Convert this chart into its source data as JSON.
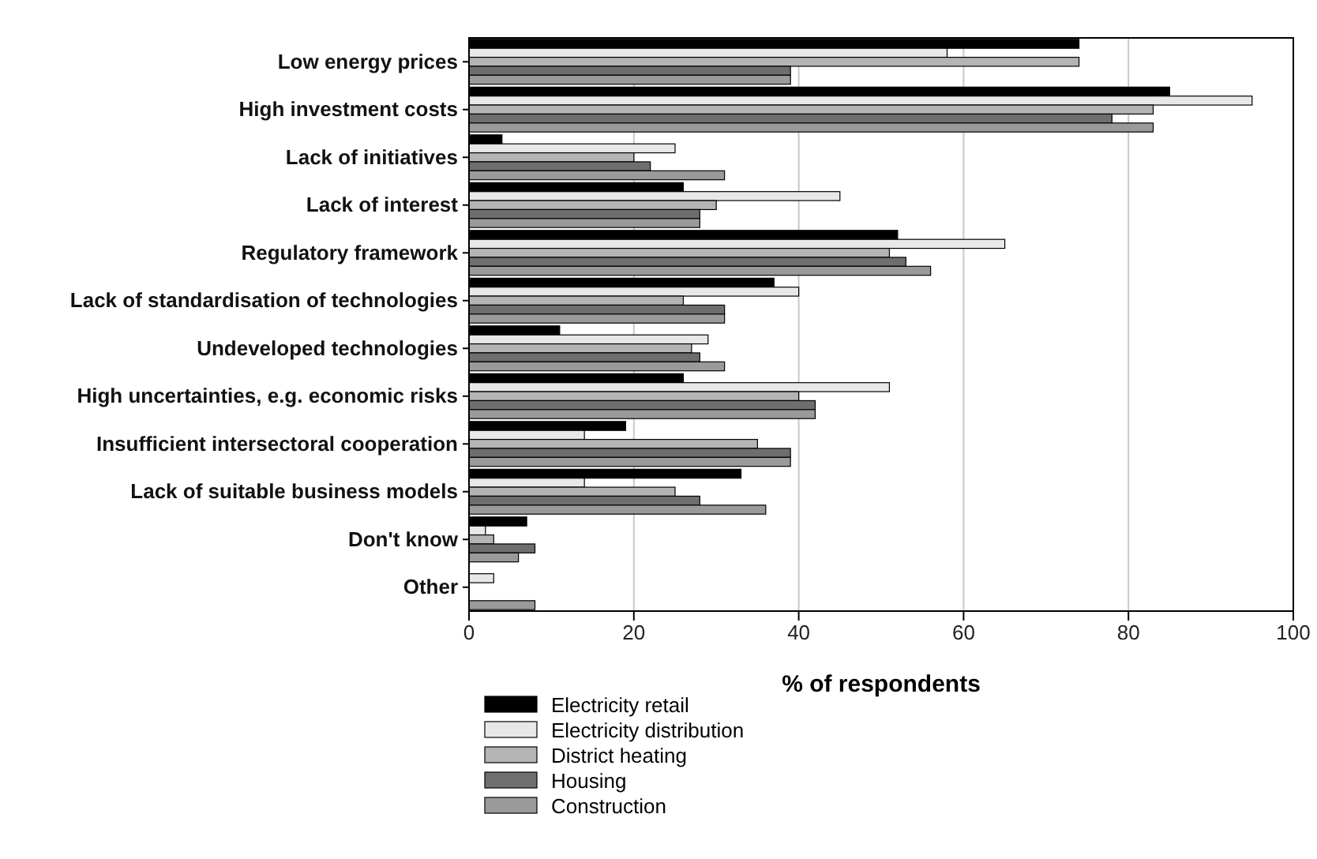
{
  "chart_data": {
    "type": "bar",
    "orientation": "horizontal",
    "xlabel": "% of respondents",
    "categories": [
      "Low energy prices",
      "High investment costs",
      "Lack of initiatives",
      "Lack of interest",
      "Regulatory framework",
      "Lack of standardisation of technologies",
      "Undeveloped technologies",
      "High uncertainties, e.g. economic risks",
      "Insufficient intersectoral cooperation",
      "Lack of suitable business models",
      "Don't know",
      "Other"
    ],
    "series": [
      {
        "name": "Electricity retail",
        "color": "#000000",
        "values": [
          74,
          85,
          4,
          26,
          52,
          37,
          11,
          26,
          19,
          33,
          7,
          0
        ]
      },
      {
        "name": "Electricity distribution",
        "color": "#e8e8e8",
        "values": [
          58,
          95,
          25,
          45,
          65,
          40,
          29,
          51,
          14,
          14,
          2,
          3
        ]
      },
      {
        "name": "District heating",
        "color": "#b4b4b4",
        "values": [
          74,
          83,
          20,
          30,
          51,
          26,
          27,
          40,
          35,
          25,
          3,
          0
        ]
      },
      {
        "name": "Housing",
        "color": "#6e6e6e",
        "values": [
          39,
          78,
          22,
          28,
          53,
          31,
          28,
          42,
          39,
          28,
          8,
          0
        ]
      },
      {
        "name": "Construction",
        "color": "#9a9a9a",
        "values": [
          39,
          83,
          31,
          28,
          56,
          31,
          31,
          42,
          39,
          36,
          6,
          8
        ]
      }
    ],
    "xlim": [
      0,
      100
    ],
    "xticks": [
      0,
      20,
      40,
      60,
      80,
      100
    ],
    "grid": "x",
    "legend": "bottom"
  }
}
